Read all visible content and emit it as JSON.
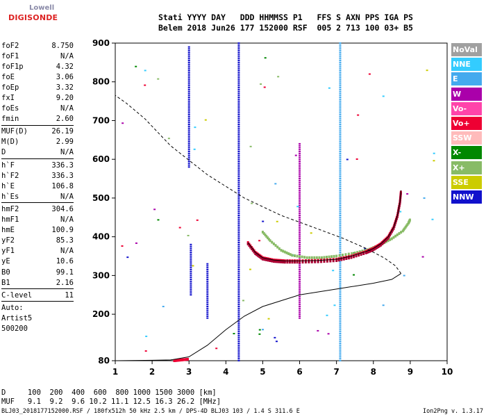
{
  "logo": {
    "top": "Lowell",
    "bottom": "DIGISONDE"
  },
  "header": {
    "line1": "Stati YYYY DAY   DDD HHMMSS P1   FFS S AXN PPS IGA PS",
    "line2": "Belem 2018 Jun26 177 152000 RSF  005 2 713 100 03+ B5"
  },
  "params": [
    {
      "label": "foF2",
      "value": "8.750"
    },
    {
      "label": "foF1",
      "value": "N/A"
    },
    {
      "label": "foF1p",
      "value": "4.32"
    },
    {
      "label": "foE",
      "value": "3.06"
    },
    {
      "label": "foEp",
      "value": "3.32"
    },
    {
      "label": "fxI",
      "value": "9.20"
    },
    {
      "label": "foEs",
      "value": "N/A"
    },
    {
      "label": "fmin",
      "value": "2.60",
      "sep": true
    },
    {
      "label": "MUF(D)",
      "value": "26.19"
    },
    {
      "label": "M(D)",
      "value": "2.99"
    },
    {
      "label": "D",
      "value": "N/A",
      "sep": true
    },
    {
      "label": "h`F",
      "value": "336.3"
    },
    {
      "label": "h`F2",
      "value": "336.3"
    },
    {
      "label": "h`E",
      "value": "106.8"
    },
    {
      "label": "h`Es",
      "value": "N/A",
      "sep": true
    },
    {
      "label": "hmF2",
      "value": "304.6"
    },
    {
      "label": "hmF1",
      "value": "N/A"
    },
    {
      "label": "hmE",
      "value": "100.9"
    },
    {
      "label": "yF2",
      "value": "85.3"
    },
    {
      "label": "yF1",
      "value": "N/A"
    },
    {
      "label": "yE",
      "value": "10.6"
    },
    {
      "label": "B0",
      "value": "99.1"
    },
    {
      "label": "B1",
      "value": "2.16",
      "sep": true
    },
    {
      "label": "C-level",
      "value": "11",
      "sep": true
    },
    {
      "label": "Auto:",
      "value": ""
    },
    {
      "label": "Artist5",
      "value": ""
    },
    {
      "label": "500200",
      "value": ""
    }
  ],
  "bottom": {
    "row1": "D     100  200  400  600  800 1000 1500 3000 [km]",
    "row2": "MUF   9.1  9.2  9.6 10.2 11.1 12.5 16.3 26.2 [MHz]"
  },
  "footer": "BLJ03_2018177152000.RSF / 180fx512h 50 kHz 2.5 km / DPS-4D BLJ03 103 / 1.4 S 311.6 E",
  "version": "Ion2Png v. 1.3.17",
  "legend": [
    {
      "label": "NoVal",
      "color": "#a0a0a0"
    },
    {
      "label": "NNE",
      "color": "#33ccff"
    },
    {
      "label": "E",
      "color": "#44aaee"
    },
    {
      "label": "W",
      "color": "#aa00aa"
    },
    {
      "label": "Vo-",
      "color": "#ff44aa"
    },
    {
      "label": "Vo+",
      "color": "#ee0033"
    },
    {
      "label": "SSW",
      "color": "#ffbbbb"
    },
    {
      "label": "X-",
      "color": "#008800"
    },
    {
      "label": "X+",
      "color": "#88bb66"
    },
    {
      "label": "SSE",
      "color": "#cccc00"
    },
    {
      "label": "NNW",
      "color": "#1111cc"
    }
  ],
  "chart_data": {
    "type": "scatter",
    "title": "",
    "xlabel": "",
    "ylabel": "",
    "xlim": [
      1,
      10
    ],
    "ylim": [
      80,
      900
    ],
    "x_ticks": [
      "1",
      "2",
      "3",
      "4",
      "5",
      "6",
      "7",
      "8",
      "9",
      "10"
    ],
    "y_ticks": [
      "80",
      "200",
      "300",
      "400",
      "500",
      "600",
      "700",
      "800",
      "900"
    ],
    "y_tick_values": [
      80,
      200,
      300,
      400,
      500,
      600,
      700,
      800,
      900
    ],
    "o_trace": [
      [
        4.6,
        385
      ],
      [
        4.8,
        360
      ],
      [
        5.0,
        346
      ],
      [
        5.3,
        340
      ],
      [
        5.6,
        338
      ],
      [
        6.0,
        338
      ],
      [
        6.5,
        339
      ],
      [
        7.0,
        342
      ],
      [
        7.4,
        350
      ],
      [
        7.8,
        362
      ],
      [
        8.0,
        370
      ],
      [
        8.2,
        382
      ],
      [
        8.4,
        400
      ],
      [
        8.55,
        425
      ],
      [
        8.65,
        455
      ],
      [
        8.72,
        490
      ],
      [
        8.75,
        520
      ]
    ],
    "x_trace": [
      [
        5.0,
        412
      ],
      [
        5.2,
        390
      ],
      [
        5.5,
        365
      ],
      [
        5.8,
        352
      ],
      [
        6.2,
        346
      ],
      [
        6.6,
        346
      ],
      [
        7.0,
        350
      ],
      [
        7.5,
        358
      ],
      [
        7.9,
        368
      ],
      [
        8.2,
        380
      ],
      [
        8.5,
        395
      ],
      [
        8.8,
        415
      ],
      [
        8.95,
        435
      ],
      [
        9.0,
        445
      ]
    ],
    "e_trace": [
      [
        2.6,
        80
      ],
      [
        2.8,
        82
      ],
      [
        3.0,
        84
      ]
    ],
    "model_profile": [
      [
        1.0,
        80
      ],
      [
        2.0,
        81
      ],
      [
        2.5,
        82
      ],
      [
        3.0,
        90
      ],
      [
        3.5,
        120
      ],
      [
        4.0,
        160
      ],
      [
        4.5,
        195
      ],
      [
        5.0,
        220
      ],
      [
        6.0,
        250
      ],
      [
        7.0,
        265
      ],
      [
        8.0,
        280
      ],
      [
        8.5,
        290
      ],
      [
        8.75,
        305
      ]
    ],
    "model_virtual": [
      [
        8.75,
        305
      ],
      [
        8.6,
        325
      ],
      [
        8.3,
        345
      ],
      [
        7.8,
        370
      ],
      [
        7.2,
        395
      ],
      [
        6.5,
        420
      ],
      [
        5.5,
        455
      ],
      [
        4.5,
        500
      ],
      [
        3.5,
        560
      ],
      [
        2.5,
        635
      ],
      [
        1.8,
        705
      ],
      [
        1.3,
        745
      ],
      [
        1.0,
        765
      ]
    ],
    "vertical_columns": [
      {
        "x": 3.0,
        "from": 580,
        "to": 890,
        "color": "#1111cc"
      },
      {
        "x": 3.05,
        "from": 250,
        "to": 380,
        "color": "#1111cc"
      },
      {
        "x": 3.5,
        "from": 190,
        "to": 330,
        "color": "#1111cc"
      },
      {
        "x": 4.35,
        "from": 80,
        "to": 900,
        "color": "#1111cc"
      },
      {
        "x": 6.0,
        "from": 190,
        "to": 640,
        "color": "#aa00aa"
      },
      {
        "x": 7.1,
        "from": 80,
        "to": 900,
        "color": "#44aaee"
      }
    ]
  }
}
